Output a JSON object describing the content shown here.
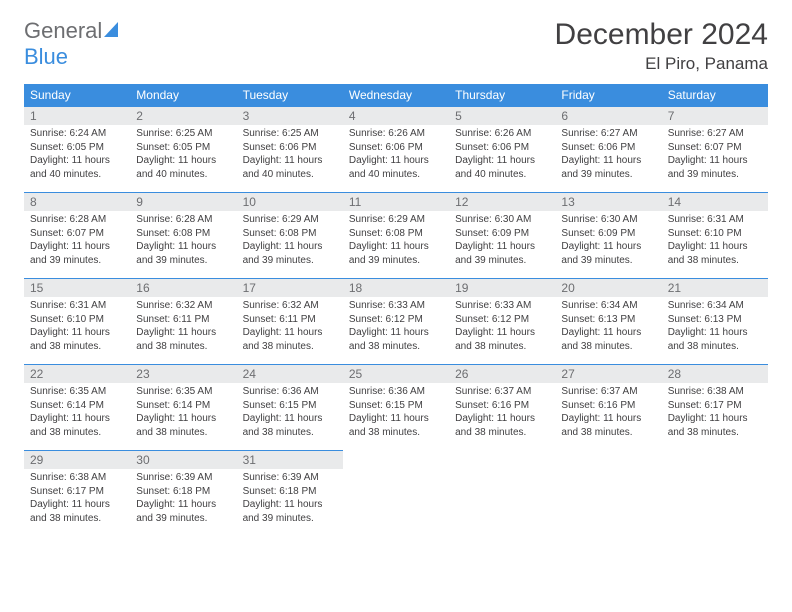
{
  "brand": {
    "name_gray": "General",
    "name_blue": "Blue"
  },
  "header": {
    "month_title": "December 2024",
    "location": "El Piro, Panama"
  },
  "colors": {
    "accent": "#3a8dde",
    "header_bg": "#3a8dde",
    "daynum_bg": "#e9eaeb",
    "text": "#414042",
    "muted": "#6d6e71",
    "page_bg": "#ffffff"
  },
  "weekdays": [
    "Sunday",
    "Monday",
    "Tuesday",
    "Wednesday",
    "Thursday",
    "Friday",
    "Saturday"
  ],
  "labels": {
    "sunrise": "Sunrise:",
    "sunset": "Sunset:",
    "daylight": "Daylight:"
  },
  "days": [
    {
      "n": 1,
      "sr": "6:24 AM",
      "ss": "6:05 PM",
      "dl": "11 hours and 40 minutes."
    },
    {
      "n": 2,
      "sr": "6:25 AM",
      "ss": "6:05 PM",
      "dl": "11 hours and 40 minutes."
    },
    {
      "n": 3,
      "sr": "6:25 AM",
      "ss": "6:06 PM",
      "dl": "11 hours and 40 minutes."
    },
    {
      "n": 4,
      "sr": "6:26 AM",
      "ss": "6:06 PM",
      "dl": "11 hours and 40 minutes."
    },
    {
      "n": 5,
      "sr": "6:26 AM",
      "ss": "6:06 PM",
      "dl": "11 hours and 40 minutes."
    },
    {
      "n": 6,
      "sr": "6:27 AM",
      "ss": "6:06 PM",
      "dl": "11 hours and 39 minutes."
    },
    {
      "n": 7,
      "sr": "6:27 AM",
      "ss": "6:07 PM",
      "dl": "11 hours and 39 minutes."
    },
    {
      "n": 8,
      "sr": "6:28 AM",
      "ss": "6:07 PM",
      "dl": "11 hours and 39 minutes."
    },
    {
      "n": 9,
      "sr": "6:28 AM",
      "ss": "6:08 PM",
      "dl": "11 hours and 39 minutes."
    },
    {
      "n": 10,
      "sr": "6:29 AM",
      "ss": "6:08 PM",
      "dl": "11 hours and 39 minutes."
    },
    {
      "n": 11,
      "sr": "6:29 AM",
      "ss": "6:08 PM",
      "dl": "11 hours and 39 minutes."
    },
    {
      "n": 12,
      "sr": "6:30 AM",
      "ss": "6:09 PM",
      "dl": "11 hours and 39 minutes."
    },
    {
      "n": 13,
      "sr": "6:30 AM",
      "ss": "6:09 PM",
      "dl": "11 hours and 39 minutes."
    },
    {
      "n": 14,
      "sr": "6:31 AM",
      "ss": "6:10 PM",
      "dl": "11 hours and 38 minutes."
    },
    {
      "n": 15,
      "sr": "6:31 AM",
      "ss": "6:10 PM",
      "dl": "11 hours and 38 minutes."
    },
    {
      "n": 16,
      "sr": "6:32 AM",
      "ss": "6:11 PM",
      "dl": "11 hours and 38 minutes."
    },
    {
      "n": 17,
      "sr": "6:32 AM",
      "ss": "6:11 PM",
      "dl": "11 hours and 38 minutes."
    },
    {
      "n": 18,
      "sr": "6:33 AM",
      "ss": "6:12 PM",
      "dl": "11 hours and 38 minutes."
    },
    {
      "n": 19,
      "sr": "6:33 AM",
      "ss": "6:12 PM",
      "dl": "11 hours and 38 minutes."
    },
    {
      "n": 20,
      "sr": "6:34 AM",
      "ss": "6:13 PM",
      "dl": "11 hours and 38 minutes."
    },
    {
      "n": 21,
      "sr": "6:34 AM",
      "ss": "6:13 PM",
      "dl": "11 hours and 38 minutes."
    },
    {
      "n": 22,
      "sr": "6:35 AM",
      "ss": "6:14 PM",
      "dl": "11 hours and 38 minutes."
    },
    {
      "n": 23,
      "sr": "6:35 AM",
      "ss": "6:14 PM",
      "dl": "11 hours and 38 minutes."
    },
    {
      "n": 24,
      "sr": "6:36 AM",
      "ss": "6:15 PM",
      "dl": "11 hours and 38 minutes."
    },
    {
      "n": 25,
      "sr": "6:36 AM",
      "ss": "6:15 PM",
      "dl": "11 hours and 38 minutes."
    },
    {
      "n": 26,
      "sr": "6:37 AM",
      "ss": "6:16 PM",
      "dl": "11 hours and 38 minutes."
    },
    {
      "n": 27,
      "sr": "6:37 AM",
      "ss": "6:16 PM",
      "dl": "11 hours and 38 minutes."
    },
    {
      "n": 28,
      "sr": "6:38 AM",
      "ss": "6:17 PM",
      "dl": "11 hours and 38 minutes."
    },
    {
      "n": 29,
      "sr": "6:38 AM",
      "ss": "6:17 PM",
      "dl": "11 hours and 38 minutes."
    },
    {
      "n": 30,
      "sr": "6:39 AM",
      "ss": "6:18 PM",
      "dl": "11 hours and 39 minutes."
    },
    {
      "n": 31,
      "sr": "6:39 AM",
      "ss": "6:18 PM",
      "dl": "11 hours and 39 minutes."
    }
  ],
  "layout": {
    "start_weekday": 0,
    "columns": 7,
    "rows": 5
  }
}
